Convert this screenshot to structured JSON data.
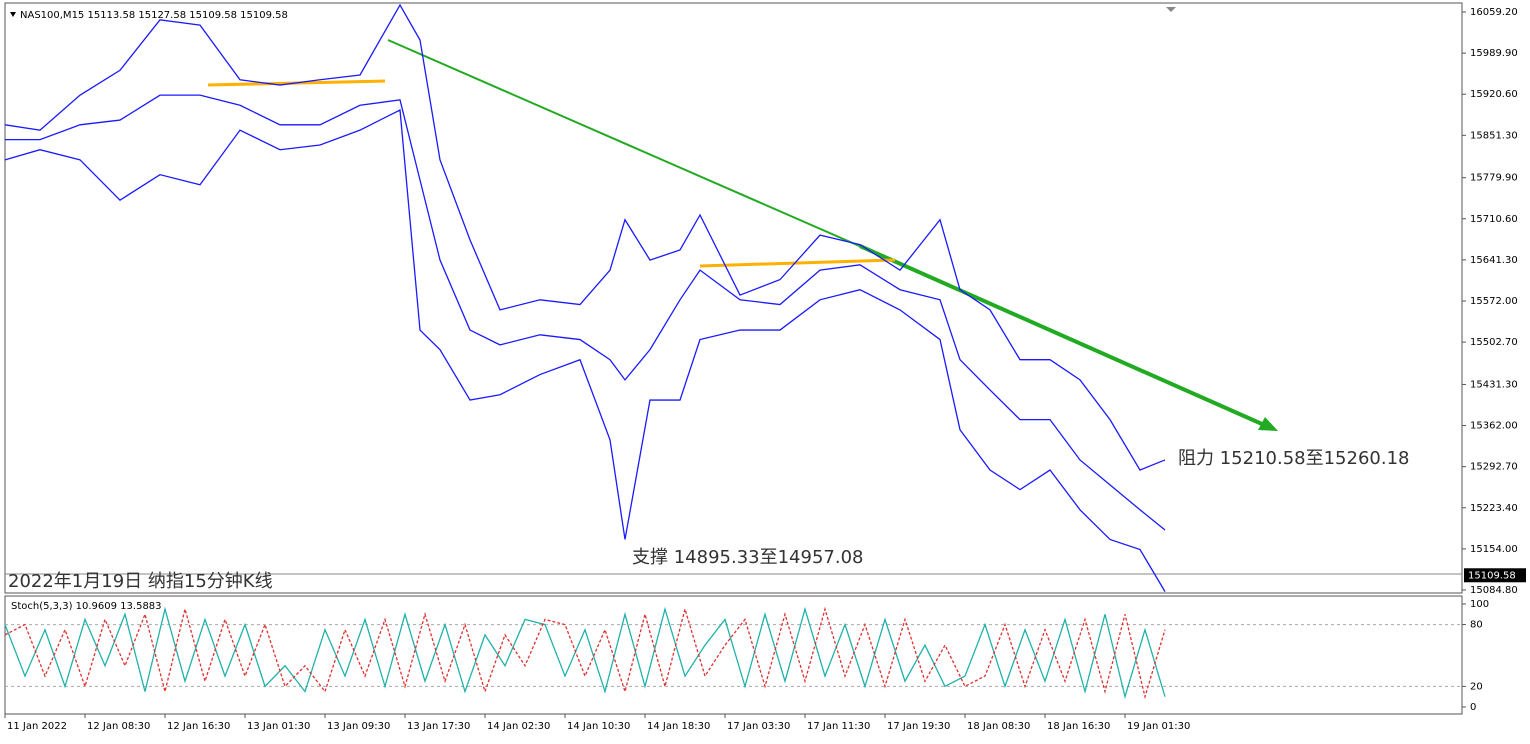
{
  "chart_data": [
    {
      "type": "line",
      "header": "NAS100,M15  15113.58 15127.58 15109.58 15109.58",
      "title": "2022年1月19日 纳指15分钟K线",
      "annotations": [
        "阻力 15210.58至15260.18",
        "支撑 14895.33至14957.08"
      ],
      "current_price": 15109.58,
      "x": [
        0,
        14,
        30,
        46,
        62,
        78,
        94,
        110,
        126,
        142,
        158,
        166,
        174,
        186,
        198,
        214,
        230,
        242,
        248,
        258,
        270,
        278,
        294,
        310,
        326,
        342,
        358,
        374,
        382,
        394,
        406,
        418,
        430,
        442,
        454,
        464
      ],
      "series": [
        {
          "color": "#1a1aff",
          "values": [
            15844,
            15844,
            15869,
            15877,
            15919,
            15919,
            15902,
            15869,
            15869,
            15902,
            15911,
            15776,
            15641,
            15523,
            15498,
            15515,
            15507,
            15473,
            15439,
            15490,
            15574,
            15624,
            15574,
            15566,
            15624,
            15633,
            15591,
            15574,
            15473,
            15422,
            15372,
            15372,
            15304,
            15262,
            15220,
            15186
          ]
        },
        {
          "color": "#1a1aff",
          "values": [
            15869,
            15860,
            15919,
            15961,
            16046,
            16037,
            15945,
            15936,
            15945,
            15953,
            16071,
            16012,
            15810,
            15675,
            15557,
            15574,
            15566,
            15624,
            15709,
            15641,
            15658,
            15717,
            15582,
            15608,
            15683,
            15667,
            15624,
            15709,
            15591,
            15557,
            15473,
            15473,
            15439,
            15372,
            15287,
            15304
          ]
        },
        {
          "color": "#1a1aff",
          "values": [
            15810,
            15827,
            15810,
            15742,
            15785,
            15768,
            15860,
            15827,
            15835,
            15860,
            15894,
            15523,
            15490,
            15405,
            15414,
            15448,
            15473,
            15338,
            15170,
            15405,
            15405,
            15507,
            15523,
            15523,
            15574,
            15591,
            15557,
            15507,
            15355,
            15287,
            15254,
            15287,
            15220,
            15170,
            15153,
            15082
          ]
        }
      ],
      "xlim": [
        0,
        582.8
      ],
      "ylim": [
        15079.7,
        16071
      ],
      "yticks": [
        {
          "value": 16059.2,
          "label": "16059.20"
        },
        {
          "value": 15989.9,
          "label": "15989.90"
        },
        {
          "value": 15920.6,
          "label": "15920.60"
        },
        {
          "value": 15851.3,
          "label": "15851.30"
        },
        {
          "value": 15779.9,
          "label": "15779.90"
        },
        {
          "value": 15710.6,
          "label": "15710.60"
        },
        {
          "value": 15641.3,
          "label": "15641.30"
        },
        {
          "value": 15572,
          "label": "15572.00"
        },
        {
          "value": 15502.7,
          "label": "15502.70"
        },
        {
          "value": 15431.3,
          "label": "15431.30"
        },
        {
          "value": 15362,
          "label": "15362.00"
        },
        {
          "value": 15292.7,
          "label": "15292.70"
        },
        {
          "value": 15223.4,
          "label": "15223.40"
        },
        {
          "value": 15154,
          "label": "15154.00"
        },
        {
          "value": 15084.8,
          "label": "15084.80"
        }
      ]
    },
    {
      "type": "line",
      "title": "Stoch(5,3,3) 10.9609 13.5883",
      "x": [
        0,
        8,
        16,
        24,
        32,
        40,
        48,
        56,
        64,
        72,
        80,
        88,
        96,
        104,
        112,
        120,
        128,
        136,
        144,
        152,
        160,
        168,
        176,
        184,
        192,
        200,
        208,
        216,
        224,
        232,
        240,
        248,
        256,
        264,
        272,
        280,
        288,
        296,
        304,
        312,
        320,
        328,
        336,
        344,
        352,
        360,
        368,
        376,
        384,
        392,
        400,
        408,
        416,
        424,
        432,
        440,
        448,
        456,
        464
      ],
      "series": [
        {
          "color": "#20b2aa",
          "values": [
            80,
            30,
            75,
            20,
            85,
            40,
            90,
            15,
            95,
            25,
            85,
            30,
            80,
            20,
            40,
            15,
            75,
            30,
            85,
            20,
            90,
            25,
            80,
            15,
            70,
            40,
            85,
            80,
            30,
            75,
            15,
            90,
            20,
            95,
            30,
            60,
            85,
            20,
            90,
            25,
            95,
            30,
            80,
            20,
            85,
            25,
            60,
            20,
            30,
            80,
            20,
            75,
            25,
            85,
            15,
            90,
            10,
            75,
            10
          ]
        },
        {
          "color": "#e03030",
          "values": [
            70,
            80,
            30,
            75,
            20,
            85,
            40,
            90,
            15,
            95,
            25,
            85,
            30,
            80,
            20,
            40,
            15,
            75,
            30,
            85,
            20,
            90,
            25,
            80,
            15,
            70,
            40,
            85,
            80,
            30,
            75,
            15,
            90,
            20,
            95,
            30,
            60,
            85,
            20,
            90,
            25,
            95,
            30,
            80,
            20,
            85,
            25,
            60,
            20,
            30,
            80,
            20,
            75,
            25,
            85,
            15,
            90,
            10,
            75
          ]
        }
      ],
      "xlim": [
        0,
        582.8
      ],
      "ylim": [
        -3.9,
        105.8
      ],
      "yticks": [
        0,
        20,
        80,
        100
      ],
      "xticks": [
        {
          "value": 0,
          "label": "11 Jan 2022"
        },
        {
          "value": 32,
          "label": "12 Jan 08:30"
        },
        {
          "value": 64,
          "label": "12 Jan 16:30"
        },
        {
          "value": 96,
          "label": "13 Jan 01:30"
        },
        {
          "value": 128,
          "label": "13 Jan 09:30"
        },
        {
          "value": 160,
          "label": "13 Jan 17:30"
        },
        {
          "value": 192,
          "label": "14 Jan 02:30"
        },
        {
          "value": 224,
          "label": "14 Jan 10:30"
        },
        {
          "value": 256,
          "label": "14 Jan 18:30"
        },
        {
          "value": 288,
          "label": "17 Jan 03:30"
        },
        {
          "value": 320,
          "label": "17 Jan 11:30"
        },
        {
          "value": 352,
          "label": "17 Jan 19:30"
        },
        {
          "value": 384,
          "label": "18 Jan 08:30"
        },
        {
          "value": 416,
          "label": "18 Jan 16:30"
        },
        {
          "value": 448,
          "label": "19 Jan 01:30"
        }
      ],
      "grid": true
    }
  ]
}
